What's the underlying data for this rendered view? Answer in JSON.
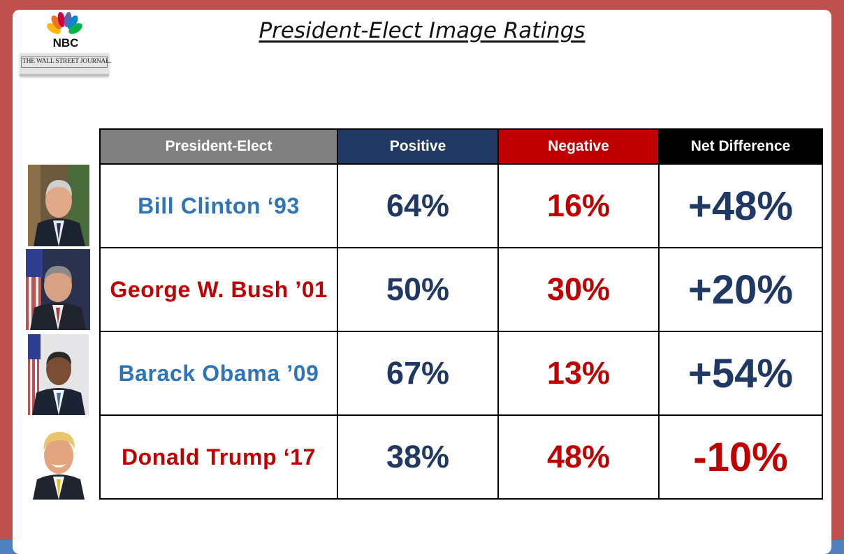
{
  "page": {
    "title": "President-Elect Image Ratings"
  },
  "logos": {
    "nbc": "NBC",
    "wsj": "THE WALL STREET JOURNAL."
  },
  "colors": {
    "frame": "#c0504d",
    "outer": "#4f7fbf",
    "header_president": "#808080",
    "header_positive": "#1f3864",
    "header_negative": "#c00000",
    "header_net": "#000000",
    "positive_text": "#1f3864",
    "negative_text": "#c00000",
    "democrat_name": "#2e75b6",
    "republican_name": "#c00000"
  },
  "chart_data": {
    "type": "table",
    "title": "President-Elect Image Ratings",
    "columns": [
      "President-Elect",
      "Positive",
      "Negative",
      "Net Difference"
    ],
    "rows": [
      {
        "name": "Bill Clinton ‘93",
        "positive": "64%",
        "negative": "16%",
        "net": "+48%",
        "party": "D",
        "photo_icon": "bill-clinton-portrait-icon"
      },
      {
        "name": "George W. Bush ’01",
        "positive": "50%",
        "negative": "30%",
        "net": "+20%",
        "party": "R",
        "photo_icon": "george-w-bush-portrait-icon"
      },
      {
        "name": "Barack Obama ’09",
        "positive": "67%",
        "negative": "13%",
        "net": "+54%",
        "party": "D",
        "photo_icon": "barack-obama-portrait-icon"
      },
      {
        "name": "Donald Trump ‘17",
        "positive": "38%",
        "negative": "48%",
        "net": "-10%",
        "party": "R",
        "photo_icon": "donald-trump-portrait-icon"
      }
    ]
  }
}
